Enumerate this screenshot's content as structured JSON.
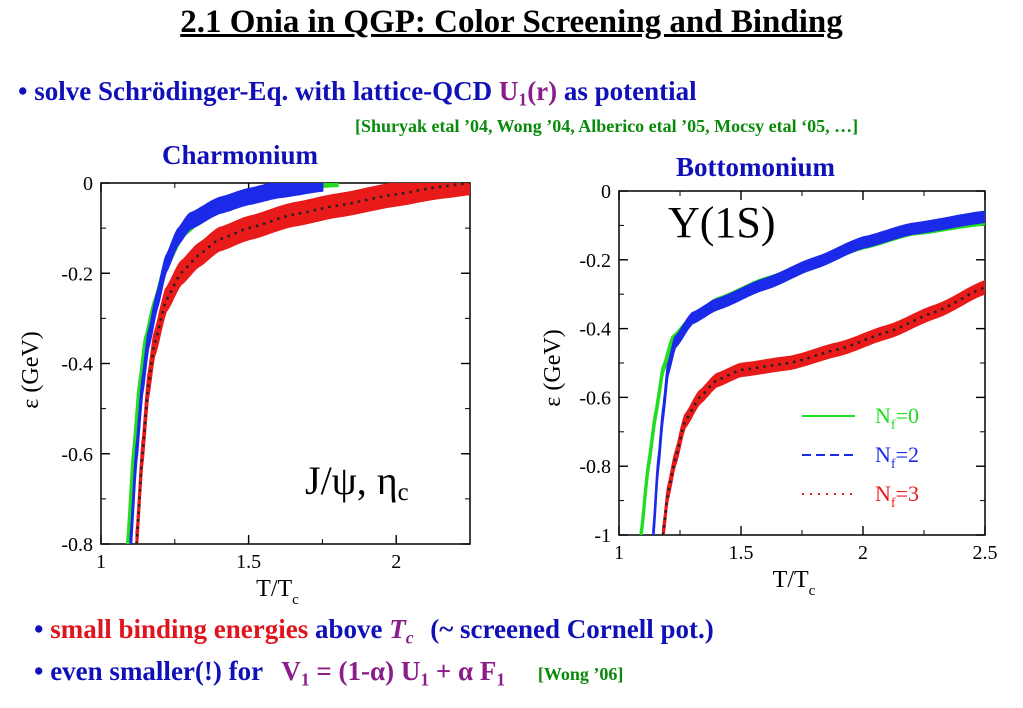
{
  "title": "2.1 Onia in QGP: Color Screening and Binding",
  "bullet1": {
    "bullet": "•",
    "text1": "solve Schrödinger-Eq. with lattice-QCD",
    "u": "U",
    "u_sub": "1",
    "u_arg": "(r)",
    "text2": "as potential"
  },
  "references": "[Shuryak etal ’04, Wong ’04, Alberico etal ’05, Mocsy etal ‘05, …]",
  "bullet2": {
    "bullet": "•",
    "red_text": "small binding energies",
    "text1": "above",
    "tc": "T",
    "tc_sub": "c",
    "text2": "(~ screened Cornell pot.)"
  },
  "bullet3": {
    "bullet": "•",
    "text1": "even smaller(!) for",
    "formula": {
      "v": "V",
      "v_sub": "1",
      "eq": " = (1-",
      "alpha1": "α",
      "close": ") U",
      "u_sub": "1",
      "plus": " + ",
      "alpha2": "α",
      "f": " F",
      "f_sub": "1"
    },
    "ref": "[Wong ’06]"
  },
  "colors": {
    "nf0": "#22dd22",
    "nf2": "#1a2ae8",
    "nf3": "#e81a1a",
    "text_blue": "#1010b8",
    "text_purple": "#8a1d8a",
    "text_green": "#0a8a0a"
  },
  "chart_data": [
    {
      "type": "line",
      "panel_title": "Charmonium",
      "annotation": "J/ψ, η",
      "annotation_sub": "c",
      "xlabel": "T/T",
      "xlabel_sub": "c",
      "ylabel": "ε (GeV)",
      "xlim": [
        1.0,
        2.25
      ],
      "ylim": [
        -0.8,
        0.0
      ],
      "xticks": [
        1,
        1.5,
        2
      ],
      "xtick_labels": [
        "1",
        "1.5",
        "2"
      ],
      "yticks": [
        0,
        -0.2,
        -0.4,
        -0.6,
        -0.8
      ],
      "ytick_labels": [
        "0",
        "-0.2",
        "-0.4",
        "-0.6",
        "-0.8"
      ],
      "series": [
        {
          "key": "nf0",
          "x": [
            1.09,
            1.11,
            1.13,
            1.15,
            1.18,
            1.22,
            1.28,
            1.35,
            1.45,
            1.55,
            1.65,
            1.8
          ],
          "y": [
            -0.8,
            -0.6,
            -0.45,
            -0.35,
            -0.27,
            -0.18,
            -0.11,
            -0.07,
            -0.04,
            -0.02,
            -0.005,
            0.0
          ],
          "band": 0.006
        },
        {
          "key": "nf2",
          "x": [
            1.1,
            1.12,
            1.14,
            1.16,
            1.19,
            1.22,
            1.26,
            1.3,
            1.4,
            1.5,
            1.6,
            1.75
          ],
          "y": [
            -0.8,
            -0.6,
            -0.45,
            -0.35,
            -0.26,
            -0.18,
            -0.12,
            -0.085,
            -0.05,
            -0.03,
            -0.015,
            0.0
          ],
          "band": 0.017
        },
        {
          "key": "nf3",
          "x": [
            1.12,
            1.14,
            1.16,
            1.18,
            1.22,
            1.27,
            1.33,
            1.4,
            1.5,
            1.65,
            1.8,
            2.0,
            2.15,
            2.25
          ],
          "y": [
            -0.8,
            -0.6,
            -0.45,
            -0.36,
            -0.26,
            -0.2,
            -0.16,
            -0.125,
            -0.1,
            -0.07,
            -0.05,
            -0.025,
            -0.008,
            0.0
          ],
          "band": 0.025
        }
      ]
    },
    {
      "type": "line",
      "panel_title": "Bottomonium",
      "annotation": "Υ(1S)",
      "xlabel": "T/T",
      "xlabel_sub": "c",
      "ylabel": "ε (GeV)",
      "xlim": [
        1.0,
        2.5
      ],
      "ylim": [
        -1.0,
        0.0
      ],
      "xticks": [
        1,
        1.5,
        2,
        2.5
      ],
      "xtick_labels": [
        "1",
        "1.5",
        "2",
        "2.5"
      ],
      "yticks": [
        0,
        -0.2,
        -0.4,
        -0.6,
        -0.8,
        -1
      ],
      "ytick_labels": [
        "0",
        "-0.2",
        "-0.4",
        "-0.6",
        "-0.8",
        "-1"
      ],
      "legend": {
        "position": "lower-right",
        "entries": [
          {
            "key": "nf0",
            "label": "N",
            "sub": "f",
            "value": "=0",
            "style": "solid"
          },
          {
            "key": "nf2",
            "label": "N",
            "sub": "f",
            "value": "=2",
            "style": "dashed"
          },
          {
            "key": "nf3",
            "label": "N",
            "sub": "f",
            "value": "=3",
            "style": "dotted"
          }
        ]
      },
      "series": [
        {
          "key": "nf0",
          "x": [
            1.09,
            1.12,
            1.15,
            1.18,
            1.22,
            1.3,
            1.4,
            1.6,
            1.8,
            2.0,
            2.2,
            2.5
          ],
          "y": [
            -1.0,
            -0.8,
            -0.65,
            -0.52,
            -0.43,
            -0.37,
            -0.32,
            -0.26,
            -0.21,
            -0.16,
            -0.12,
            -0.09
          ],
          "band": 0.006
        },
        {
          "key": "nf2",
          "x": [
            1.14,
            1.16,
            1.18,
            1.2,
            1.23,
            1.3,
            1.4,
            1.6,
            1.8,
            2.0,
            2.2,
            2.5
          ],
          "y": [
            -1.0,
            -0.8,
            -0.65,
            -0.52,
            -0.44,
            -0.37,
            -0.33,
            -0.27,
            -0.21,
            -0.15,
            -0.11,
            -0.075
          ],
          "band": 0.015
        },
        {
          "key": "nf3",
          "x": [
            1.18,
            1.2,
            1.23,
            1.27,
            1.33,
            1.4,
            1.5,
            1.7,
            1.9,
            2.1,
            2.3,
            2.5
          ],
          "y": [
            -1.0,
            -0.88,
            -0.78,
            -0.67,
            -0.6,
            -0.55,
            -0.52,
            -0.5,
            -0.46,
            -0.41,
            -0.35,
            -0.28
          ],
          "band": 0.018
        }
      ]
    }
  ]
}
